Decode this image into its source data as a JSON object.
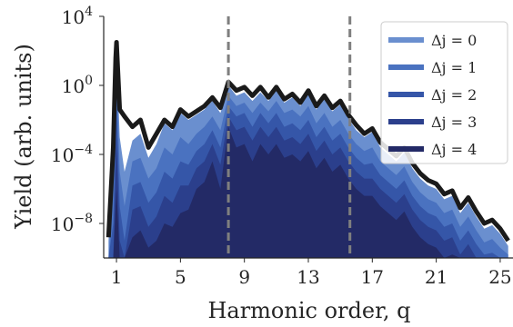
{
  "chart_data": {
    "type": "area",
    "xlabel": "Harmonic order, q",
    "ylabel": "Yield (arb. units)",
    "x_ticks": [
      1,
      5,
      9,
      13,
      17,
      21,
      25
    ],
    "x_tick_labels": [
      "1",
      "5",
      "9",
      "13",
      "17",
      "21",
      "25"
    ],
    "xlim": [
      0.2,
      25.8
    ],
    "y_scale": "log",
    "ylim_log10": [
      -10,
      4
    ],
    "y_ticks_log10": [
      4,
      0,
      -4,
      -8
    ],
    "y_tick_labels": [
      {
        "base": "10",
        "exp": "4"
      },
      {
        "base": "10",
        "exp": "0"
      },
      {
        "base": "10",
        "exp": "−4"
      },
      {
        "base": "10",
        "exp": "−8"
      }
    ],
    "vlines": [
      8.0,
      15.6
    ],
    "grid": false,
    "legend_position": "top-right",
    "series": [
      {
        "name": "Δj = 0",
        "color": "#6a8fcf",
        "x": [
          0.5,
          0.8,
          1.0,
          1.2,
          1.5,
          2.0,
          2.5,
          3.0,
          3.5,
          4.0,
          4.5,
          5.0,
          5.5,
          6.0,
          6.5,
          7.0,
          7.5,
          8.0,
          8.5,
          9.0,
          9.5,
          10.0,
          10.5,
          11.0,
          11.5,
          12.0,
          12.5,
          13.0,
          13.5,
          14.0,
          14.5,
          15.0,
          15.5,
          16.0,
          16.5,
          17.0,
          17.5,
          18.0,
          18.5,
          19.0,
          19.5,
          20.0,
          20.5,
          21.0,
          21.5,
          22.0,
          22.5,
          23.0,
          23.5,
          24.0,
          24.5,
          25.0,
          25.5
        ],
        "log10_y": [
          -9.0,
          -4.0,
          2.1,
          -3.0,
          -5.0,
          -3.2,
          -2.8,
          -4.2,
          -3.4,
          -2.2,
          -2.6,
          -1.6,
          -2.0,
          -1.7,
          -1.4,
          -0.9,
          -1.6,
          0.0,
          -0.6,
          -0.4,
          -0.9,
          -0.4,
          -0.9,
          -0.3,
          -1.0,
          -0.7,
          -1.2,
          -0.5,
          -1.4,
          -0.8,
          -1.5,
          -1.1,
          -1.9,
          -2.6,
          -3.0,
          -2.7,
          -3.6,
          -4.0,
          -4.4,
          -3.9,
          -4.8,
          -5.4,
          -5.8,
          -6.0,
          -6.6,
          -6.4,
          -7.4,
          -6.8,
          -7.6,
          -8.3,
          -8.1,
          -8.6,
          -9.3
        ]
      },
      {
        "name": "Δj = 1",
        "color": "#4a72c0",
        "x": [
          0.5,
          0.8,
          1.0,
          1.2,
          1.5,
          2.0,
          2.5,
          3.0,
          3.5,
          4.0,
          4.5,
          5.0,
          5.5,
          6.0,
          6.5,
          7.0,
          7.5,
          8.0,
          8.5,
          9.0,
          9.5,
          10.0,
          10.5,
          11.0,
          11.5,
          12.0,
          12.5,
          13.0,
          13.5,
          14.0,
          14.5,
          15.0,
          15.5,
          16.0,
          16.5,
          17.0,
          17.5,
          18.0,
          18.5,
          19.0,
          19.5,
          20.0,
          20.5,
          21.0,
          21.5,
          22.0,
          22.5,
          23.0,
          23.5,
          24.0,
          24.5,
          25.0,
          25.5
        ],
        "log10_y": [
          -10.0,
          -6.0,
          1.0,
          -5.0,
          -7.0,
          -4.4,
          -4.2,
          -5.4,
          -4.8,
          -3.6,
          -4.0,
          -3.0,
          -3.4,
          -2.8,
          -2.4,
          -1.8,
          -2.6,
          -0.6,
          -1.2,
          -1.0,
          -1.6,
          -1.0,
          -1.5,
          -0.9,
          -1.6,
          -1.4,
          -1.8,
          -1.2,
          -2.2,
          -1.6,
          -2.4,
          -2.0,
          -2.8,
          -3.4,
          -3.8,
          -3.6,
          -4.4,
          -4.8,
          -5.2,
          -4.7,
          -5.6,
          -6.2,
          -6.6,
          -6.8,
          -7.4,
          -7.2,
          -8.2,
          -7.6,
          -8.4,
          -9.1,
          -8.9,
          -9.4,
          -9.8
        ]
      },
      {
        "name": "Δj = 2",
        "color": "#3556a8",
        "x": [
          0.5,
          0.8,
          1.0,
          1.2,
          1.5,
          2.0,
          2.5,
          3.0,
          3.5,
          4.0,
          4.5,
          5.0,
          5.5,
          6.0,
          6.5,
          7.0,
          7.5,
          8.0,
          8.5,
          9.0,
          9.5,
          10.0,
          10.5,
          11.0,
          11.5,
          12.0,
          12.5,
          13.0,
          13.5,
          14.0,
          14.5,
          15.0,
          15.5,
          16.0,
          16.5,
          17.0,
          17.5,
          18.0,
          18.5,
          19.0,
          19.5,
          20.0,
          20.5,
          21.0,
          21.5,
          22.0,
          22.5,
          23.0,
          23.5,
          24.0,
          24.5,
          25.0,
          25.5
        ],
        "log10_y": [
          -10.0,
          -8.0,
          -1.0,
          -7.0,
          -9.0,
          -5.8,
          -5.6,
          -6.8,
          -6.2,
          -5.0,
          -5.4,
          -4.4,
          -4.6,
          -3.8,
          -3.4,
          -2.6,
          -3.6,
          -1.2,
          -1.8,
          -1.6,
          -2.4,
          -1.6,
          -2.2,
          -1.6,
          -2.4,
          -2.2,
          -2.6,
          -2.0,
          -3.0,
          -2.4,
          -3.2,
          -2.8,
          -3.6,
          -4.2,
          -4.6,
          -4.5,
          -5.2,
          -5.6,
          -6.0,
          -5.5,
          -6.4,
          -7.0,
          -7.4,
          -7.6,
          -8.2,
          -8.0,
          -9.0,
          -8.4,
          -9.2,
          -9.8,
          -9.7,
          -10.0,
          -10.0
        ]
      },
      {
        "name": "Δj = 3",
        "color": "#2b3f8c",
        "x": [
          0.5,
          0.8,
          1.0,
          1.2,
          1.5,
          2.0,
          2.5,
          3.0,
          3.5,
          4.0,
          4.5,
          5.0,
          5.5,
          6.0,
          6.5,
          7.0,
          7.5,
          8.0,
          8.5,
          9.0,
          9.5,
          10.0,
          10.5,
          11.0,
          11.5,
          12.0,
          12.5,
          13.0,
          13.5,
          14.0,
          14.5,
          15.0,
          15.5,
          16.0,
          16.5,
          17.0,
          17.5,
          18.0,
          18.5,
          19.0,
          19.5,
          20.0,
          20.5,
          21.0,
          21.5,
          22.0,
          22.5,
          23.0,
          23.5,
          24.0,
          24.5,
          25.0,
          25.5
        ],
        "log10_y": [
          -10.0,
          -10.0,
          -3.0,
          -9.0,
          -10.0,
          -7.2,
          -7.0,
          -8.2,
          -7.6,
          -6.4,
          -6.8,
          -5.8,
          -5.8,
          -4.8,
          -4.4,
          -3.4,
          -4.6,
          -1.8,
          -2.6,
          -2.4,
          -3.2,
          -2.4,
          -3.0,
          -2.4,
          -3.2,
          -3.0,
          -3.4,
          -2.8,
          -3.8,
          -3.2,
          -4.0,
          -3.6,
          -4.4,
          -5.0,
          -5.4,
          -5.4,
          -6.0,
          -6.4,
          -6.8,
          -6.3,
          -7.2,
          -7.8,
          -8.2,
          -8.4,
          -9.0,
          -8.8,
          -9.8,
          -9.2,
          -10.0,
          -10.0,
          -10.0,
          -10.0,
          -10.0
        ]
      },
      {
        "name": "Δj = 4",
        "color": "#232a66",
        "x": [
          0.5,
          0.8,
          1.0,
          1.2,
          1.5,
          2.0,
          2.5,
          3.0,
          3.5,
          4.0,
          4.5,
          5.0,
          5.5,
          6.0,
          6.5,
          7.0,
          7.5,
          8.0,
          8.5,
          9.0,
          9.5,
          10.0,
          10.5,
          11.0,
          11.5,
          12.0,
          12.5,
          13.0,
          13.5,
          14.0,
          14.5,
          15.0,
          15.5,
          16.0,
          16.5,
          17.0,
          17.5,
          18.0,
          18.5,
          19.0,
          19.5,
          20.0,
          20.5,
          21.0,
          21.5,
          22.0,
          22.5,
          23.0,
          23.5,
          24.0,
          24.5,
          25.0,
          25.5
        ],
        "log10_y": [
          -10.0,
          -10.0,
          -6.0,
          -10.0,
          -10.0,
          -8.8,
          -8.4,
          -9.4,
          -9.0,
          -8.0,
          -8.2,
          -7.4,
          -7.2,
          -6.0,
          -5.6,
          -4.4,
          -6.0,
          -2.4,
          -3.6,
          -3.4,
          -4.4,
          -3.4,
          -4.0,
          -3.4,
          -4.2,
          -4.0,
          -4.4,
          -3.8,
          -4.8,
          -4.2,
          -5.0,
          -4.6,
          -5.4,
          -6.0,
          -6.4,
          -6.4,
          -7.0,
          -7.4,
          -7.8,
          -7.3,
          -8.2,
          -8.8,
          -9.2,
          -9.4,
          -10.0,
          -9.8,
          -10.0,
          -10.0,
          -10.0,
          -10.0,
          -10.0,
          -10.0,
          -10.0
        ]
      }
    ],
    "envelope": {
      "color": "#1a1a1a",
      "x": [
        0.5,
        0.8,
        0.95,
        1.0,
        1.05,
        1.2,
        1.5,
        2.0,
        2.5,
        3.0,
        3.5,
        4.0,
        4.5,
        5.0,
        5.5,
        6.0,
        6.5,
        7.0,
        7.5,
        8.0,
        8.5,
        9.0,
        9.5,
        10.0,
        10.5,
        11.0,
        11.5,
        12.0,
        12.5,
        13.0,
        13.5,
        14.0,
        14.5,
        15.0,
        15.5,
        16.0,
        16.5,
        17.0,
        17.5,
        18.0,
        18.5,
        19.0,
        19.5,
        20.0,
        20.5,
        21.0,
        21.5,
        22.0,
        22.5,
        23.0,
        23.5,
        24.0,
        24.5,
        25.0,
        25.5
      ],
      "log10_y": [
        -8.8,
        -3.6,
        1.6,
        2.5,
        1.6,
        -1.4,
        -1.8,
        -2.4,
        -2.0,
        -3.6,
        -2.8,
        -2.0,
        -2.4,
        -1.4,
        -1.8,
        -1.5,
        -1.2,
        -0.7,
        -1.3,
        0.2,
        -0.3,
        -0.1,
        -0.6,
        -0.1,
        -0.7,
        -0.1,
        -0.8,
        -0.5,
        -1.0,
        -0.3,
        -1.2,
        -0.6,
        -1.3,
        -0.9,
        -1.7,
        -2.3,
        -2.8,
        -2.5,
        -3.3,
        -3.7,
        -4.1,
        -3.6,
        -4.5,
        -5.1,
        -5.5,
        -5.7,
        -6.3,
        -6.1,
        -7.1,
        -6.5,
        -7.3,
        -8.0,
        -7.8,
        -8.3,
        -9.0
      ]
    }
  }
}
